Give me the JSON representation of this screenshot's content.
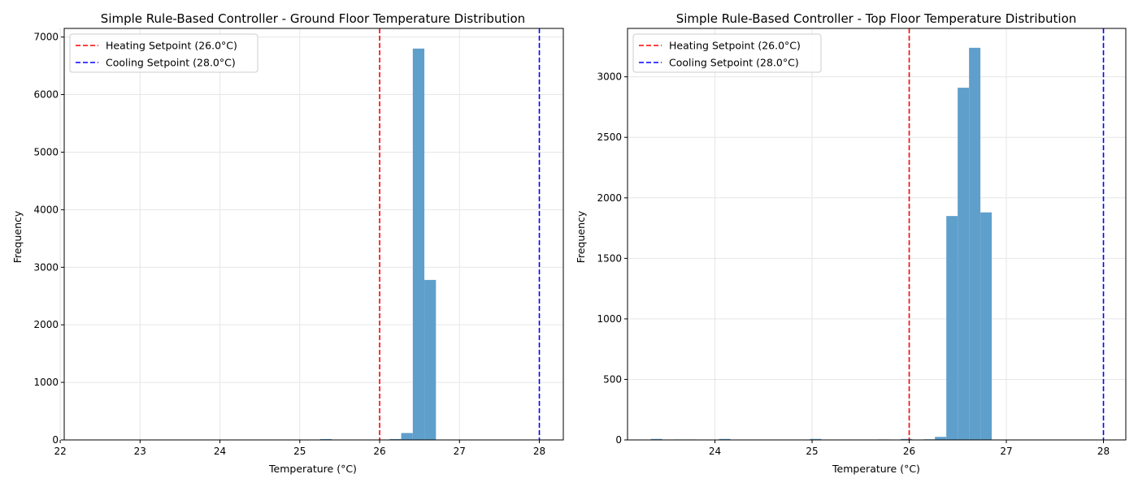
{
  "chart_data": [
    {
      "type": "bar",
      "title": "Simple Rule-Based Controller - Ground Floor Temperature Distribution",
      "xlabel": "Temperature (°C)",
      "ylabel": "Frequency",
      "xlim": [
        22.05,
        28.3
      ],
      "ylim": [
        0,
        7150
      ],
      "xticks": [
        22,
        23,
        24,
        25,
        26,
        27,
        28
      ],
      "yticks": [
        0,
        1000,
        2000,
        3000,
        4000,
        5000,
        6000,
        7000
      ],
      "grid": true,
      "legend_position": "upper-left",
      "bar_color": "#5f9fcb",
      "bin_width": 0.145,
      "bins": [
        {
          "x": 22.21,
          "value": 5
        },
        {
          "x": 22.355,
          "value": 4
        },
        {
          "x": 22.5,
          "value": 5
        },
        {
          "x": 22.645,
          "value": 5
        },
        {
          "x": 22.935,
          "value": 4
        },
        {
          "x": 23.08,
          "value": 5
        },
        {
          "x": 23.225,
          "value": 4
        },
        {
          "x": 23.37,
          "value": 4
        },
        {
          "x": 23.515,
          "value": 5
        },
        {
          "x": 23.66,
          "value": 4
        },
        {
          "x": 23.805,
          "value": 4
        },
        {
          "x": 23.95,
          "value": 5
        },
        {
          "x": 24.095,
          "value": 4
        },
        {
          "x": 24.24,
          "value": 5
        },
        {
          "x": 24.385,
          "value": 4
        },
        {
          "x": 24.53,
          "value": 4
        },
        {
          "x": 24.675,
          "value": 5
        },
        {
          "x": 24.82,
          "value": 4
        },
        {
          "x": 24.965,
          "value": 5
        },
        {
          "x": 25.11,
          "value": 4
        },
        {
          "x": 25.255,
          "value": 15
        },
        {
          "x": 25.4,
          "value": 5
        },
        {
          "x": 25.545,
          "value": 4
        },
        {
          "x": 25.69,
          "value": 5
        },
        {
          "x": 25.835,
          "value": 4
        },
        {
          "x": 26.125,
          "value": 15
        },
        {
          "x": 26.27,
          "value": 120
        },
        {
          "x": 26.415,
          "value": 6800
        },
        {
          "x": 26.56,
          "value": 2780
        }
      ],
      "reference_lines": [
        {
          "label": "Heating Setpoint (26.0°C)",
          "x": 26.0,
          "color": "#ff0000"
        },
        {
          "label": "Cooling Setpoint (28.0°C)",
          "x": 28.0,
          "color": "#0000ff"
        }
      ]
    },
    {
      "type": "bar",
      "title": "Simple Rule-Based Controller - Top Floor Temperature Distribution",
      "xlabel": "Temperature (°C)",
      "ylabel": "Frequency",
      "xlim": [
        23.1,
        28.23
      ],
      "ylim": [
        0,
        3400
      ],
      "xticks": [
        24,
        25,
        26,
        27,
        28
      ],
      "yticks": [
        0,
        500,
        1000,
        1500,
        2000,
        2500,
        3000
      ],
      "grid": true,
      "legend_position": "upper-left",
      "bar_color": "#5f9fcb",
      "bin_width": 0.117,
      "bins": [
        {
          "x": 23.34,
          "value": 8
        },
        {
          "x": 23.457,
          "value": 3
        },
        {
          "x": 23.574,
          "value": 4
        },
        {
          "x": 23.691,
          "value": 4
        },
        {
          "x": 24.042,
          "value": 8
        },
        {
          "x": 24.276,
          "value": 3
        },
        {
          "x": 24.393,
          "value": 3
        },
        {
          "x": 24.627,
          "value": 3
        },
        {
          "x": 24.744,
          "value": 3
        },
        {
          "x": 24.978,
          "value": 8
        },
        {
          "x": 25.212,
          "value": 3
        },
        {
          "x": 25.329,
          "value": 3
        },
        {
          "x": 25.563,
          "value": 3
        },
        {
          "x": 25.68,
          "value": 4
        },
        {
          "x": 25.914,
          "value": 8
        },
        {
          "x": 26.148,
          "value": 5
        },
        {
          "x": 26.265,
          "value": 25
        },
        {
          "x": 26.382,
          "value": 1850
        },
        {
          "x": 26.499,
          "value": 2910
        },
        {
          "x": 26.616,
          "value": 3240
        },
        {
          "x": 26.733,
          "value": 1880
        }
      ],
      "reference_lines": [
        {
          "label": "Heating Setpoint (26.0°C)",
          "x": 26.0,
          "color": "#ff0000"
        },
        {
          "label": "Cooling Setpoint (28.0°C)",
          "x": 28.0,
          "color": "#0000ff"
        }
      ]
    }
  ]
}
